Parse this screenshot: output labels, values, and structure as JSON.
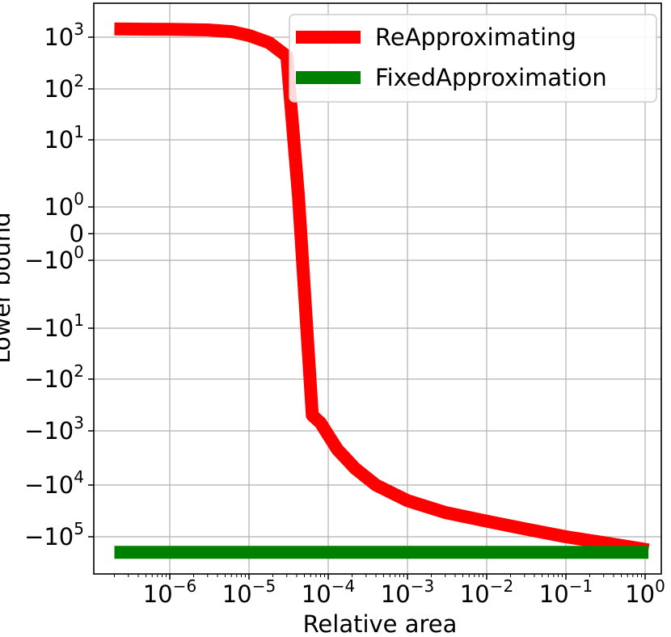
{
  "chart_data": {
    "type": "line",
    "title": "",
    "xlabel": "Relative area",
    "ylabel": "Lower bound",
    "x_scale": "log",
    "y_scale": "symlog",
    "grid": true,
    "legend_position": "top-right",
    "xlim": [
      1e-07,
      1.3
    ],
    "ylim": [
      -400000,
      4000
    ],
    "x_ticks": [
      {
        "value": 1e-06,
        "base": "10",
        "exp": "−6"
      },
      {
        "value": 1e-05,
        "base": "10",
        "exp": "−5"
      },
      {
        "value": 0.0001,
        "base": "10",
        "exp": "−4"
      },
      {
        "value": 0.001,
        "base": "10",
        "exp": "−3"
      },
      {
        "value": 0.01,
        "base": "10",
        "exp": "−2"
      },
      {
        "value": 0.1,
        "base": "10",
        "exp": "−1"
      },
      {
        "value": 1,
        "base": "10",
        "exp": "0"
      }
    ],
    "y_ticks": [
      {
        "value": 1000,
        "base": "10",
        "exp": "3"
      },
      {
        "value": 100,
        "base": "10",
        "exp": "2"
      },
      {
        "value": 10,
        "base": "10",
        "exp": "1"
      },
      {
        "value": 1,
        "base": "10",
        "exp": "0"
      },
      {
        "value": 0,
        "base": "0",
        "exp": ""
      },
      {
        "value": -1,
        "base": "−10",
        "exp": "0"
      },
      {
        "value": -10,
        "base": "−10",
        "exp": "1"
      },
      {
        "value": -100,
        "base": "−10",
        "exp": "2"
      },
      {
        "value": -1000,
        "base": "−10",
        "exp": "3"
      },
      {
        "value": -10000,
        "base": "−10",
        "exp": "4"
      },
      {
        "value": -100000,
        "base": "−10",
        "exp": "5"
      }
    ],
    "series": [
      {
        "name": "ReApproximating",
        "color": "#ff0000",
        "points": [
          [
            2e-07,
            1450
          ],
          [
            5e-07,
            1430
          ],
          [
            1e-06,
            1420
          ],
          [
            3e-06,
            1380
          ],
          [
            6e-06,
            1280
          ],
          [
            1e-05,
            1080
          ],
          [
            1.8e-05,
            780
          ],
          [
            3e-05,
            430
          ],
          [
            4.2e-05,
            1.5
          ],
          [
            6.3e-05,
            -500
          ],
          [
            8e-05,
            -700
          ],
          [
            0.00013,
            -2200
          ],
          [
            0.00022,
            -5000
          ],
          [
            0.0004,
            -10000
          ],
          [
            0.001,
            -20000
          ],
          [
            0.003,
            -34000
          ],
          [
            0.01,
            -50000
          ],
          [
            0.03,
            -70000
          ],
          [
            0.1,
            -100000
          ],
          [
            0.3,
            -130000
          ],
          [
            1.1,
            -180000
          ]
        ]
      },
      {
        "name": "FixedApproximation",
        "color": "#008000",
        "points": [
          [
            2e-07,
            -200000
          ],
          [
            1.1,
            -200000
          ]
        ]
      }
    ]
  }
}
